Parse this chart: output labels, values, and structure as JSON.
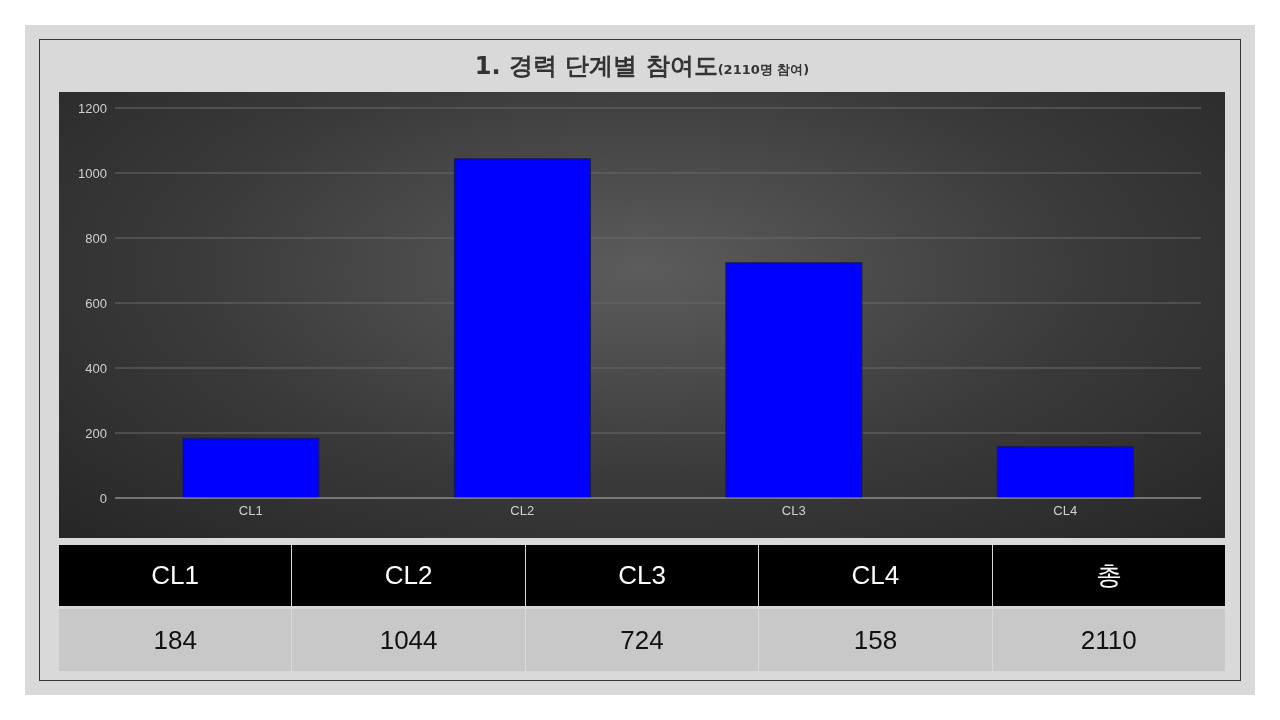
{
  "chart_data": {
    "type": "bar",
    "title": "1. 경력 단계별 참여도",
    "subtitle": "(2110명 참여)",
    "categories": [
      "CL1",
      "CL2",
      "CL3",
      "CL4"
    ],
    "values": [
      184,
      1044,
      724,
      158
    ],
    "color": "#0000ff",
    "ylim": [
      0,
      1200
    ],
    "yticks": [
      0,
      200,
      400,
      600,
      800,
      1000,
      1200
    ],
    "grid": "y",
    "annotations": [
      "총",
      "2110",
      "184",
      "1044",
      "724",
      "158"
    ]
  }
}
